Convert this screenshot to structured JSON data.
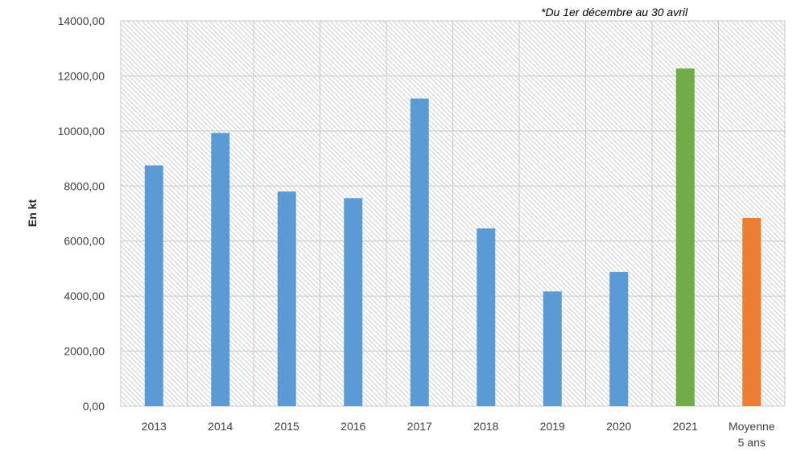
{
  "chart_data": {
    "type": "bar",
    "title": "",
    "annotation": "*Du 1er décembre au 30 avril",
    "ylabel": "En kt",
    "xlabel": "",
    "ylim": [
      0,
      14000
    ],
    "yticks": [
      "0,00",
      "2000,00",
      "4000,00",
      "6000,00",
      "8000,00",
      "10000,00",
      "12000,00",
      "14000,00"
    ],
    "grid": true,
    "categories": [
      [
        "2013"
      ],
      [
        "2014"
      ],
      [
        "2015"
      ],
      [
        "2016"
      ],
      [
        "2017"
      ],
      [
        "2018"
      ],
      [
        "2019"
      ],
      [
        "2020"
      ],
      [
        "2021"
      ],
      [
        "Moyenne",
        "5 ans"
      ]
    ],
    "values": [
      8750,
      9930,
      7800,
      7560,
      11180,
      6460,
      4170,
      4880,
      12270,
      6840
    ],
    "bar_colors": [
      "#5b9bd5",
      "#5b9bd5",
      "#5b9bd5",
      "#5b9bd5",
      "#5b9bd5",
      "#5b9bd5",
      "#5b9bd5",
      "#5b9bd5",
      "#70ad47",
      "#ed7d31"
    ],
    "plot_background": "#f2f2f2"
  }
}
